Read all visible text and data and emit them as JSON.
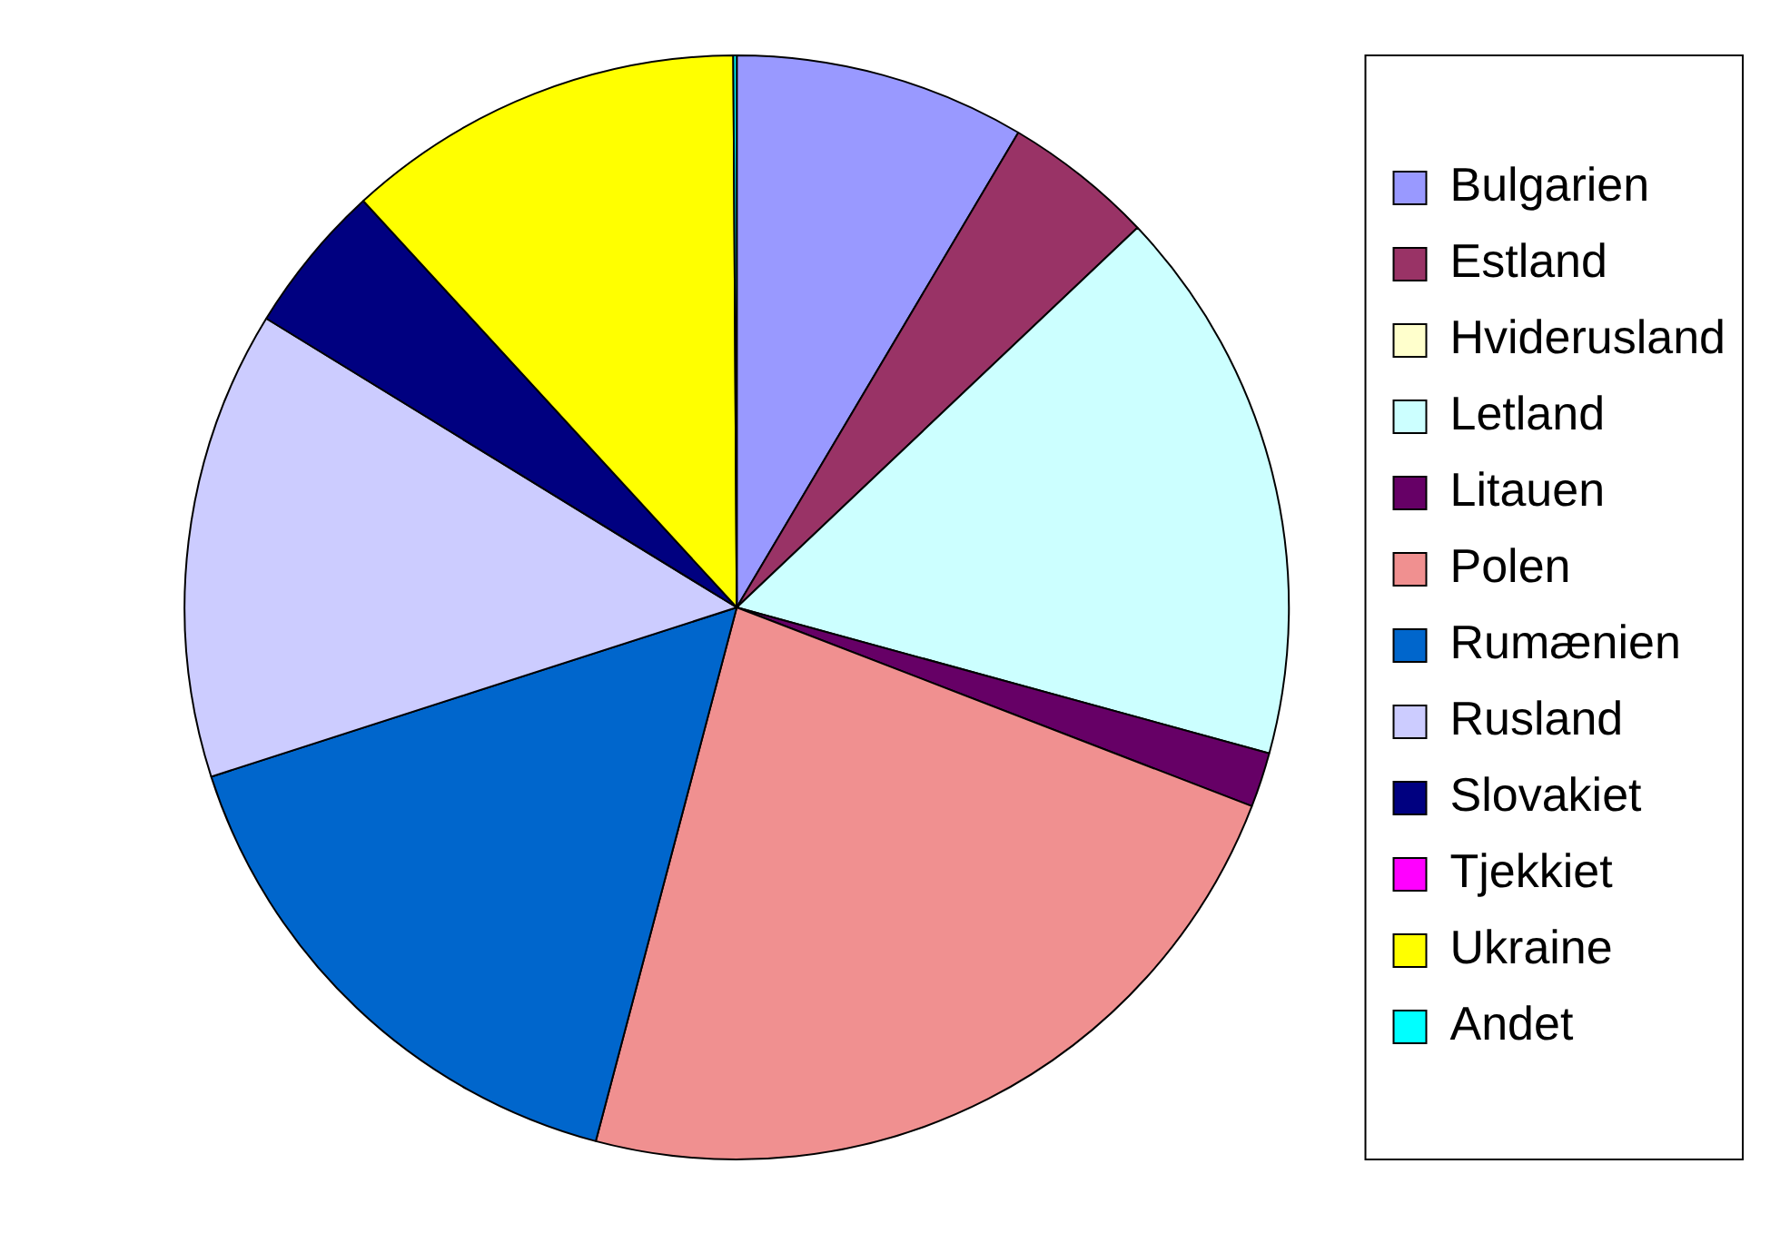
{
  "chart_data": {
    "type": "pie",
    "categories": [
      "Bulgarien",
      "Estland",
      "Hviderusland",
      "Letland",
      "Litauen",
      "Polen",
      "Rumænien",
      "Rusland",
      "Slovakiet",
      "Tjekkiet",
      "Ukraine",
      "Andet"
    ],
    "values": [
      8.5,
      4.4,
      null,
      16.3,
      1.6,
      23.2,
      15.9,
      13.7,
      4.4,
      null,
      11.7,
      0.1
    ],
    "colors": [
      "#9999ff",
      "#993366",
      "#ffffcc",
      "#ccffff",
      "#660066",
      "#f09090",
      "#0066cc",
      "#ccccff",
      "#000080",
      "#ff00ff",
      "#ffff00",
      "#00ffff"
    ],
    "legend": "right"
  }
}
